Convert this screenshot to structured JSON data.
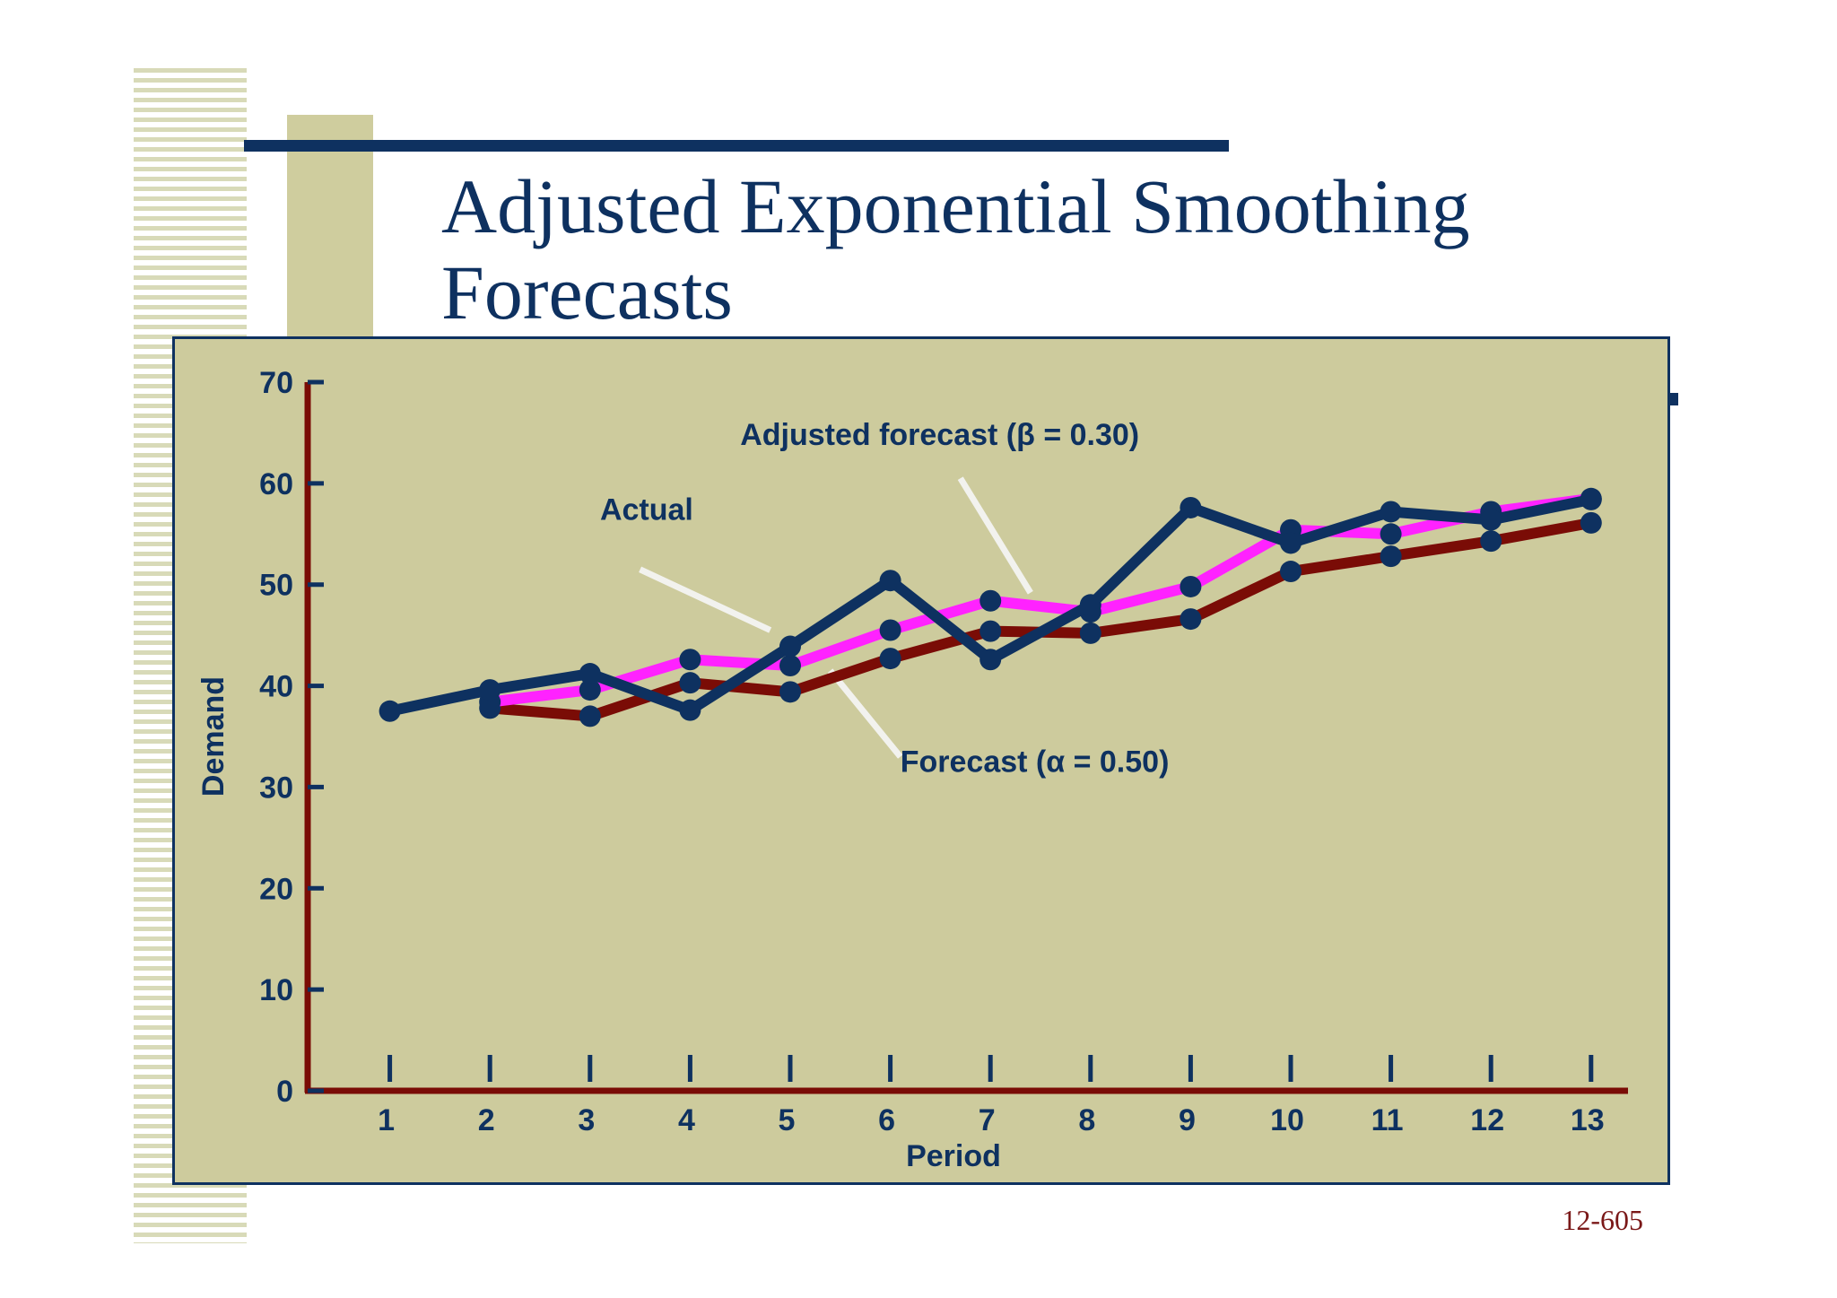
{
  "slide": {
    "title_line1": "Adjusted Exponential Smoothing",
    "title_line2": "Forecasts",
    "number": "12-605"
  },
  "colors": {
    "panel": "#cdcb9d",
    "actual": "#0e3160",
    "forecast": "#7a0c06",
    "adjusted": "#ff22ff",
    "axis": "#7a0c06",
    "text": "#0e3160",
    "pointer": "#f2f2ee"
  },
  "chart_data": {
    "type": "line",
    "xlabel": "Period",
    "ylabel": "Demand",
    "xlim": [
      0,
      13
    ],
    "ylim": [
      0,
      70
    ],
    "x_ticks": [
      1,
      2,
      3,
      4,
      5,
      6,
      7,
      8,
      9,
      10,
      11,
      12,
      13
    ],
    "y_ticks": [
      0,
      10,
      20,
      30,
      40,
      50,
      60,
      70
    ],
    "grid": false,
    "series": [
      {
        "key": "forecast",
        "name": "Forecast (α = 0.50)",
        "x": [
          2,
          3,
          4,
          5,
          6,
          7,
          8,
          9,
          10,
          11,
          12,
          13
        ],
        "values": [
          37.8,
          37.0,
          40.3,
          39.4,
          42.7,
          45.4,
          45.2,
          46.6,
          51.3,
          52.8,
          54.3,
          56.1
        ]
      },
      {
        "key": "adjusted",
        "name": "Adjusted forecast (β = 0.30)",
        "x": [
          2,
          3,
          4,
          5,
          6,
          7,
          8,
          9,
          10,
          11,
          12,
          13
        ],
        "values": [
          38.4,
          39.6,
          42.6,
          42.0,
          45.5,
          48.4,
          47.3,
          49.8,
          55.4,
          55.0,
          57.2,
          58.5
        ]
      },
      {
        "key": "actual",
        "name": "Actual",
        "x": [
          1,
          2,
          3,
          4,
          5,
          6,
          7,
          8,
          9,
          10,
          11,
          12,
          13
        ],
        "values": [
          37.5,
          39.6,
          41.2,
          37.6,
          43.9,
          50.4,
          42.6,
          48.0,
          57.6,
          54.1,
          57.2,
          56.4,
          58.4
        ]
      }
    ],
    "annotations": [
      {
        "key": "actual",
        "text": "Actual",
        "value_x": 3.1,
        "value_y": 56.4,
        "pointer_from": [
          3.5,
          51.5
        ],
        "pointer_to": [
          4.8,
          45.5
        ]
      },
      {
        "key": "adjusted",
        "text": "Adjusted forecast (β = 0.30)",
        "value_x": 4.5,
        "value_y": 63.8,
        "pointer_from": [
          6.7,
          60.5
        ],
        "pointer_to": [
          7.4,
          49.2
        ]
      },
      {
        "key": "forecast",
        "text": "Forecast (α = 0.50)",
        "value_x": 6.1,
        "value_y": 31.5,
        "pointer_from": [
          6.1,
          33.0
        ],
        "pointer_to": [
          5.4,
          41.5
        ]
      }
    ]
  }
}
